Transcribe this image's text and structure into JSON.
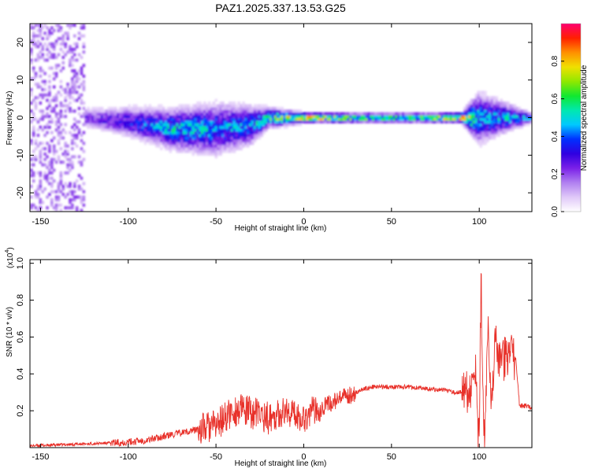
{
  "title": "PAZ1.2025.337.13.53.G25",
  "colors": {
    "snr_line": "#e8312a",
    "axis": "#000000"
  },
  "colormap": [
    "#ffffff",
    "#e0c8f8",
    "#b080f0",
    "#7a20e8",
    "#3000e0",
    "#0030ff",
    "#00c8ff",
    "#00e8b0",
    "#10e830",
    "#90e800",
    "#f0e000",
    "#ff9000",
    "#ff2000",
    "#ff0070"
  ],
  "chart_data": [
    {
      "type": "heatmap",
      "name": "spectrogram",
      "xlabel": "Height of straight line (km)",
      "ylabel": "Frequency (Hz)",
      "xlim": [
        -156,
        130
      ],
      "ylim": [
        -25,
        25
      ],
      "xticks": [
        -150,
        -100,
        -50,
        0,
        50,
        100
      ],
      "yticks": [
        -20,
        -10,
        0,
        10,
        20
      ],
      "colorbar": {
        "label": "Normalized spectral amplitude",
        "range": [
          0,
          1
        ],
        "ticks": [
          0.0,
          0.2,
          0.4,
          0.6,
          0.8
        ],
        "tick_labels": [
          "0.0",
          "0.2",
          "0.4",
          "0.6",
          "0.8"
        ]
      },
      "description_points": [
        {
          "x": -156,
          "y_center": 0,
          "amp": 0.1,
          "spread": 25
        },
        {
          "x": -125,
          "y_center": 0,
          "amp": 0.25,
          "spread": 2
        },
        {
          "x": -100,
          "y_center": -1,
          "amp": 0.35,
          "spread": 3
        },
        {
          "x": -75,
          "y_center": -3,
          "amp": 0.55,
          "spread": 4
        },
        {
          "x": -50,
          "y_center": -3,
          "amp": 0.5,
          "spread": 5
        },
        {
          "x": -30,
          "y_center": -2,
          "amp": 0.45,
          "spread": 4
        },
        {
          "x": -20,
          "y_center": 0,
          "amp": 0.6,
          "spread": 2
        },
        {
          "x": 0,
          "y_center": 0,
          "amp": 0.9,
          "spread": 1
        },
        {
          "x": 25,
          "y_center": 0,
          "amp": 0.7,
          "spread": 1
        },
        {
          "x": 60,
          "y_center": 0,
          "amp": 0.65,
          "spread": 1
        },
        {
          "x": 90,
          "y_center": 0,
          "amp": 0.9,
          "spread": 1
        },
        {
          "x": 100,
          "y_center": 0,
          "amp": 0.5,
          "spread": 5
        },
        {
          "x": 130,
          "y_center": 0,
          "amp": 0.5,
          "spread": 1
        }
      ]
    },
    {
      "type": "line",
      "name": "snr",
      "xlabel": "Height of straight line (km)",
      "ylabel": "SNR (10 * v/v)",
      "y_multiplier_label": "(x10",
      "y_multiplier_exp": "4",
      "xlim": [
        -156,
        130
      ],
      "ylim": [
        0,
        1.02
      ],
      "xticks": [
        -150,
        -100,
        -50,
        0,
        50,
        100
      ],
      "yticks": [
        0.2,
        0.4,
        0.6,
        0.8,
        1.0
      ],
      "series": [
        {
          "name": "SNR",
          "x": [
            -156,
            -140,
            -125,
            -110,
            -100,
            -90,
            -80,
            -70,
            -60,
            -50,
            -45,
            -40,
            -35,
            -30,
            -25,
            -20,
            -15,
            -10,
            -5,
            0,
            5,
            10,
            15,
            20,
            25,
            30,
            35,
            40,
            50,
            60,
            70,
            80,
            85,
            90,
            93,
            96,
            98,
            99,
            100,
            101,
            102,
            103,
            105,
            107,
            109,
            111,
            113,
            115,
            117,
            119,
            121,
            123,
            125,
            128,
            130
          ],
          "y": [
            0.01,
            0.015,
            0.02,
            0.025,
            0.03,
            0.04,
            0.06,
            0.08,
            0.1,
            0.12,
            0.16,
            0.2,
            0.2,
            0.19,
            0.18,
            0.16,
            0.18,
            0.2,
            0.18,
            0.16,
            0.2,
            0.22,
            0.24,
            0.26,
            0.28,
            0.3,
            0.32,
            0.33,
            0.33,
            0.33,
            0.32,
            0.31,
            0.3,
            0.3,
            0.3,
            0.32,
            0.4,
            0.1,
            0.03,
            0.95,
            0.3,
            0.05,
            0.7,
            0.25,
            0.6,
            0.45,
            0.45,
            0.5,
            0.48,
            0.5,
            0.47,
            0.22,
            0.23,
            0.22,
            0.22
          ]
        }
      ]
    }
  ]
}
